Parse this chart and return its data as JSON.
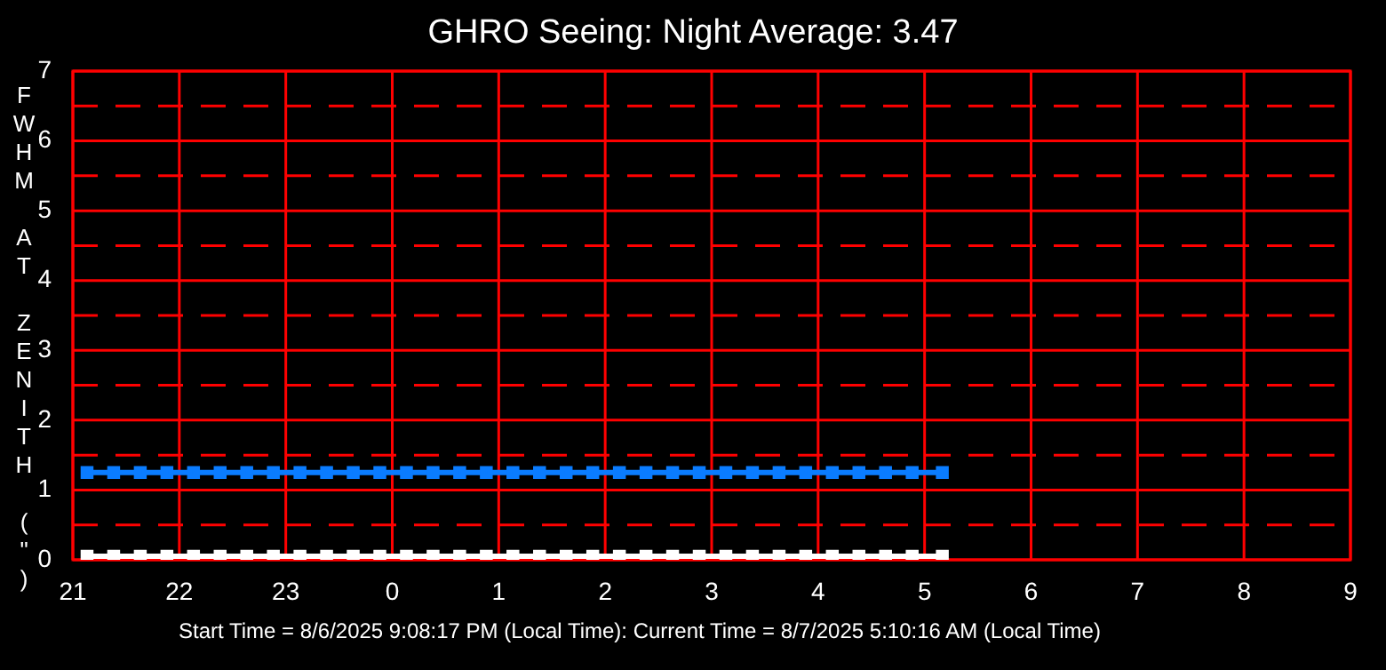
{
  "chart_data": {
    "type": "line",
    "title": "GHRO Seeing: Night Average: 3.47",
    "ylabel": "FWHM AT ZENITH (\")",
    "annotations": [
      "Start Time = 8/6/2025 9:08:17 PM (Local Time): Current Time = 8/7/2025 5:10:16 AM (Local Time)"
    ],
    "x": [
      "2025-08-06T21:08",
      "2025-08-06T21:23",
      "2025-08-06T21:38",
      "2025-08-06T21:53",
      "2025-08-06T22:08",
      "2025-08-06T22:23",
      "2025-08-06T22:38",
      "2025-08-06T22:53",
      "2025-08-06T23:08",
      "2025-08-06T23:23",
      "2025-08-06T23:38",
      "2025-08-06T23:53",
      "2025-08-07T00:08",
      "2025-08-07T00:23",
      "2025-08-07T00:38",
      "2025-08-07T00:53",
      "2025-08-07T01:08",
      "2025-08-07T01:23",
      "2025-08-07T01:38",
      "2025-08-07T01:53",
      "2025-08-07T02:08",
      "2025-08-07T02:23",
      "2025-08-07T02:38",
      "2025-08-07T02:53",
      "2025-08-07T03:08",
      "2025-08-07T03:23",
      "2025-08-07T03:38",
      "2025-08-07T03:53",
      "2025-08-07T04:08",
      "2025-08-07T04:23",
      "2025-08-07T04:38",
      "2025-08-07T04:53",
      "2025-08-07T05:10"
    ],
    "series": [
      {
        "color": "#0a7cff",
        "values": [
          1.25,
          1.25,
          1.25,
          1.25,
          1.25,
          1.25,
          1.25,
          1.25,
          1.25,
          1.25,
          1.25,
          1.25,
          1.25,
          1.25,
          1.25,
          1.25,
          1.25,
          1.25,
          1.25,
          1.25,
          1.25,
          1.25,
          1.25,
          1.25,
          1.25,
          1.25,
          1.25,
          1.25,
          1.25,
          1.25,
          1.25,
          1.25,
          1.25
        ]
      },
      {
        "color": "#ffffff",
        "values": [
          0.05,
          0.05,
          0.05,
          0.05,
          0.05,
          0.05,
          0.05,
          0.05,
          0.05,
          0.05,
          0.05,
          0.05,
          0.05,
          0.05,
          0.05,
          0.05,
          0.05,
          0.05,
          0.05,
          0.05,
          0.05,
          0.05,
          0.05,
          0.05,
          0.05,
          0.05,
          0.05,
          0.05,
          0.05,
          0.05,
          0.05,
          0.05,
          0.05
        ]
      }
    ],
    "xlim": [
      "2025-08-06T21:00",
      "2025-08-07T09:00"
    ],
    "xticks": [
      {
        "value": "2025-08-06T21:00",
        "label": "21"
      },
      {
        "value": "2025-08-06T22:00",
        "label": "22"
      },
      {
        "value": "2025-08-06T23:00",
        "label": "23"
      },
      {
        "value": "2025-08-07T00:00",
        "label": "0"
      },
      {
        "value": "2025-08-07T01:00",
        "label": "1"
      },
      {
        "value": "2025-08-07T02:00",
        "label": "2"
      },
      {
        "value": "2025-08-07T03:00",
        "label": "3"
      },
      {
        "value": "2025-08-07T04:00",
        "label": "4"
      },
      {
        "value": "2025-08-07T05:00",
        "label": "5"
      },
      {
        "value": "2025-08-07T06:00",
        "label": "6"
      },
      {
        "value": "2025-08-07T07:00",
        "label": "7"
      },
      {
        "value": "2025-08-07T08:00",
        "label": "8"
      },
      {
        "value": "2025-08-07T09:00",
        "label": "9"
      }
    ],
    "ylim": [
      0,
      7
    ],
    "yticks": [
      0,
      {
        "value": 0.5,
        "label": null
      },
      1,
      {
        "value": 1.5,
        "label": null
      },
      2,
      {
        "value": 2.5,
        "label": null
      },
      3,
      {
        "value": 3.5,
        "label": null
      },
      4,
      {
        "value": 4.5,
        "label": null
      },
      5,
      {
        "value": 5.5,
        "label": null
      },
      6,
      {
        "value": 6.5,
        "label": null
      },
      7
    ],
    "grid": true,
    "marker": "square",
    "line_style": "solid",
    "legend": false
  }
}
